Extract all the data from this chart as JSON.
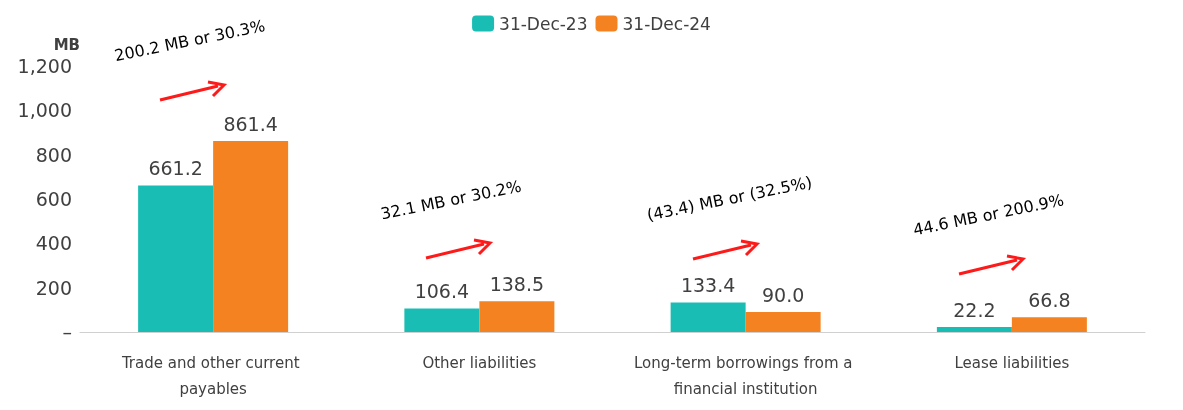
{
  "chart_data": {
    "type": "bar",
    "ylabel": "MB",
    "categories": [
      "Trade and other current payables",
      "Other liabilities",
      "Long-term borrowings from a financial institution",
      "Lease liabilities"
    ],
    "series": [
      {
        "name": "31-Dec-23",
        "color": "#19bdb3",
        "values": [
          661.2,
          106.4,
          133.4,
          22.2
        ],
        "value_labels": [
          "661.2",
          "106.4",
          "133.4",
          "22.2"
        ]
      },
      {
        "name": "31-Dec-24",
        "color": "#f58220",
        "values": [
          861.4,
          138.5,
          90.0,
          66.8
        ],
        "value_labels": [
          "861.4",
          "138.5",
          "90.0",
          "66.8"
        ]
      }
    ],
    "ylim": [
      0,
      1200
    ],
    "yticks": [
      {
        "value": 0,
        "label": "–"
      },
      {
        "value": 200,
        "label": "200"
      },
      {
        "value": 400,
        "label": "400"
      },
      {
        "value": 600,
        "label": "600"
      },
      {
        "value": 800,
        "label": "800"
      },
      {
        "value": 1000,
        "label": "1,000"
      },
      {
        "value": 1200,
        "label": "1,200"
      }
    ],
    "annotations": [
      "200.2 MB or 30.3%",
      "32.1 MB or 30.2%",
      "(43.4) MB or (32.5%)",
      "44.6 MB or 200.9%"
    ],
    "grid": false,
    "legend": "top"
  }
}
